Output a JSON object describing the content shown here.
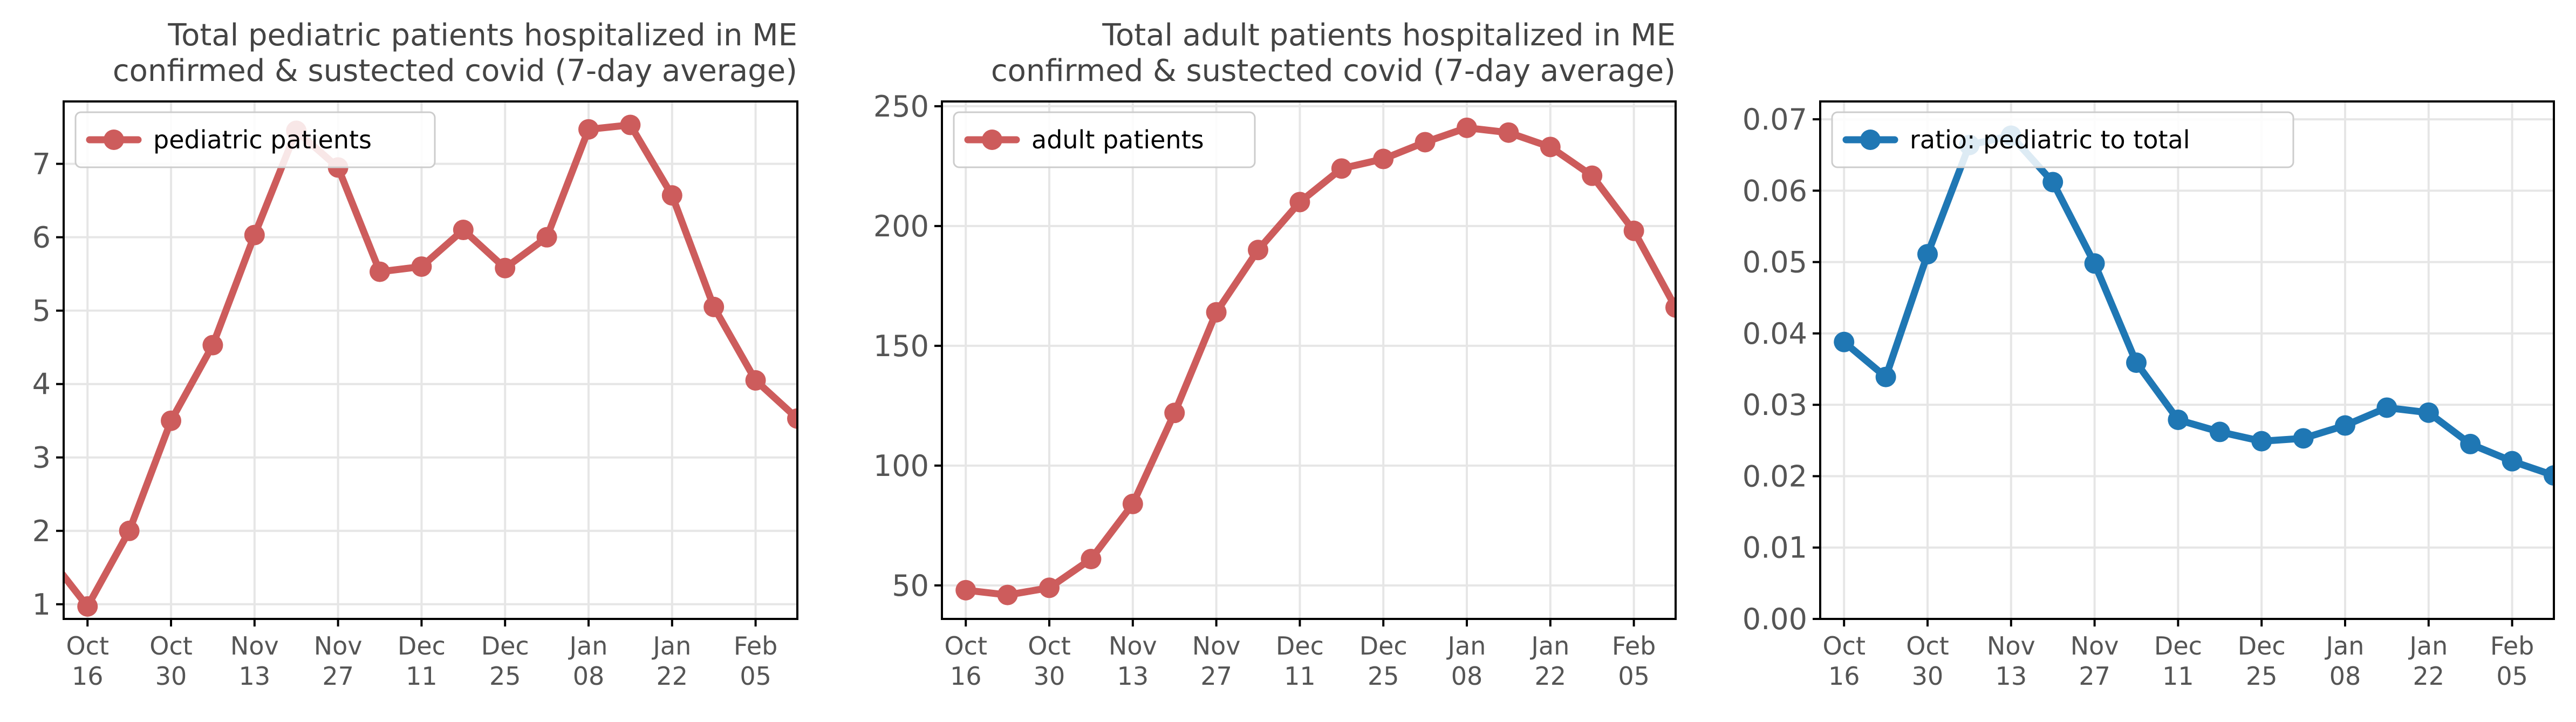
{
  "chart_data": [
    {
      "type": "line",
      "title_lines": [
        "Total pediatric patients hospitalized in ME",
        "confirmed & sustected covid (7-day average)"
      ],
      "x_tick_labels": [
        [
          "Oct",
          "16"
        ],
        [
          "Oct",
          "30"
        ],
        [
          "Nov",
          "13"
        ],
        [
          "Nov",
          "27"
        ],
        [
          "Dec",
          "11"
        ],
        [
          "Dec",
          "25"
        ],
        [
          "Jan",
          "08"
        ],
        [
          "Jan",
          "22"
        ],
        [
          "Feb",
          "05"
        ]
      ],
      "y_ticks": [
        1,
        2,
        3,
        4,
        5,
        6,
        7
      ],
      "ylim": [
        0.8,
        7.85
      ],
      "grid": true,
      "legend_position": "top-left",
      "series": [
        {
          "name": "pediatric patients",
          "color": "#cd5c5c",
          "x": [
            "2021-10-09",
            "2021-10-16",
            "2021-10-23",
            "2021-10-30",
            "2021-11-06",
            "2021-11-13",
            "2021-11-20",
            "2021-11-27",
            "2021-12-04",
            "2021-12-11",
            "2021-12-18",
            "2021-12-25",
            "2022-01-01",
            "2022-01-08",
            "2022-01-15",
            "2022-01-22",
            "2022-01-29",
            "2022-02-05",
            "2022-02-12"
          ],
          "y": [
            1.7,
            0.97,
            2.0,
            3.5,
            4.53,
            6.03,
            7.45,
            6.95,
            5.53,
            5.6,
            6.1,
            5.58,
            6.0,
            7.47,
            7.53,
            6.57,
            5.05,
            4.05,
            3.53
          ]
        }
      ]
    },
    {
      "type": "line",
      "title_lines": [
        "Total adult patients hospitalized in ME",
        "confirmed & sustected covid (7-day average)"
      ],
      "x_tick_labels": [
        [
          "Oct",
          "16"
        ],
        [
          "Oct",
          "30"
        ],
        [
          "Nov",
          "13"
        ],
        [
          "Nov",
          "27"
        ],
        [
          "Dec",
          "11"
        ],
        [
          "Dec",
          "25"
        ],
        [
          "Jan",
          "08"
        ],
        [
          "Jan",
          "22"
        ],
        [
          "Feb",
          "05"
        ]
      ],
      "y_ticks": [
        50,
        100,
        150,
        200,
        250
      ],
      "ylim": [
        36,
        252
      ],
      "grid": true,
      "legend_position": "top-left",
      "series": [
        {
          "name": "adult patients",
          "color": "#cd5c5c",
          "x": [
            "2021-10-16",
            "2021-10-23",
            "2021-10-30",
            "2021-11-06",
            "2021-11-13",
            "2021-11-20",
            "2021-11-27",
            "2021-12-04",
            "2021-12-11",
            "2021-12-18",
            "2021-12-25",
            "2022-01-01",
            "2022-01-08",
            "2022-01-15",
            "2022-01-22",
            "2022-01-29",
            "2022-02-05",
            "2022-02-12"
          ],
          "y": [
            48,
            46,
            49,
            61,
            84,
            122,
            164,
            190,
            210,
            224,
            228,
            235,
            241,
            239,
            233,
            221,
            198,
            166
          ]
        }
      ]
    },
    {
      "type": "line",
      "title_lines": [],
      "x_tick_labels": [
        [
          "Oct",
          "16"
        ],
        [
          "Oct",
          "30"
        ],
        [
          "Nov",
          "13"
        ],
        [
          "Nov",
          "27"
        ],
        [
          "Dec",
          "11"
        ],
        [
          "Dec",
          "25"
        ],
        [
          "Jan",
          "08"
        ],
        [
          "Jan",
          "22"
        ],
        [
          "Feb",
          "05"
        ]
      ],
      "y_ticks": [
        "0.00",
        "0.01",
        "0.02",
        "0.03",
        "0.04",
        "0.05",
        "0.06",
        "0.07"
      ],
      "ylim": [
        0,
        0.0725
      ],
      "grid": true,
      "legend_position": "top-left",
      "series": [
        {
          "name": "ratio: pediatric to total",
          "color": "#1f77b4",
          "x": [
            "2021-10-16",
            "2021-10-23",
            "2021-10-30",
            "2021-11-06",
            "2021-11-13",
            "2021-11-20",
            "2021-11-27",
            "2021-12-04",
            "2021-12-11",
            "2021-12-18",
            "2021-12-25",
            "2022-01-01",
            "2022-01-08",
            "2022-01-15",
            "2022-01-22",
            "2022-01-29",
            "2022-02-05",
            "2022-02-12"
          ],
          "y": [
            0.0388,
            0.0339,
            0.0511,
            0.0664,
            0.0677,
            0.0612,
            0.0498,
            0.0359,
            0.0279,
            0.0262,
            0.0249,
            0.0253,
            0.0271,
            0.0296,
            0.0289,
            0.0245,
            0.0221,
            0.0201
          ]
        }
      ]
    }
  ]
}
